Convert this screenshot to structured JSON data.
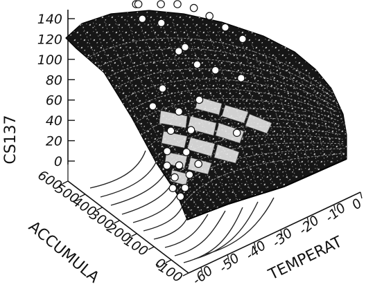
{
  "chart_data": {
    "type": "surface3d",
    "z_axis": {
      "label": "CS137",
      "ticks": [
        "0",
        "20",
        "40",
        "60",
        "80",
        "100",
        "120",
        "140"
      ],
      "range": [
        0,
        140
      ]
    },
    "y_axis": {
      "label": "ACCUMULA",
      "ticks": [
        "-100",
        "0",
        "100",
        "200",
        "300",
        "400",
        "500",
        "600"
      ],
      "range": [
        -100,
        600
      ]
    },
    "x_axis": {
      "label": "TEMPERAT",
      "ticks": [
        "-60",
        "-50",
        "-40",
        "-30",
        "-20",
        "-10",
        "0"
      ],
      "range": [
        -60,
        0
      ]
    },
    "surface_color": "#161616",
    "grid": true,
    "points": [
      {
        "temperat": -42,
        "accumula": 480,
        "cs137": 135
      },
      {
        "temperat": -45,
        "accumula": 420,
        "cs137": 118
      },
      {
        "temperat": -48,
        "accumula": 350,
        "cs137": 112
      },
      {
        "temperat": -44,
        "accumula": 300,
        "cs137": 110
      },
      {
        "temperat": -30,
        "accumula": 520,
        "cs137": 92
      },
      {
        "temperat": -25,
        "accumula": 500,
        "cs137": 88
      },
      {
        "temperat": -40,
        "accumula": 260,
        "cs137": 85
      },
      {
        "temperat": -22,
        "accumula": 450,
        "cs137": 80
      },
      {
        "temperat": -35,
        "accumula": 300,
        "cs137": 78
      },
      {
        "temperat": -50,
        "accumula": 200,
        "cs137": 70
      },
      {
        "temperat": -18,
        "accumula": 420,
        "cs137": 72
      },
      {
        "temperat": -33,
        "accumula": 260,
        "cs137": 65
      },
      {
        "temperat": -55,
        "accumula": 180,
        "cs137": 62
      },
      {
        "temperat": -28,
        "accumula": 230,
        "cs137": 58
      },
      {
        "temperat": -12,
        "accumula": 420,
        "cs137": 55
      },
      {
        "temperat": -47,
        "accumula": 150,
        "cs137": 52
      },
      {
        "temperat": -38,
        "accumula": 170,
        "cs137": 50
      },
      {
        "temperat": -8,
        "accumula": 380,
        "cs137": 45
      },
      {
        "temperat": -52,
        "accumula": 120,
        "cs137": 44
      },
      {
        "temperat": -45,
        "accumula": 110,
        "cs137": 38
      },
      {
        "temperat": -56,
        "accumula": 80,
        "cs137": 35
      },
      {
        "temperat": -15,
        "accumula": 280,
        "cs137": 30
      },
      {
        "temperat": -50,
        "accumula": 60,
        "cs137": 30
      },
      {
        "temperat": -58,
        "accumula": 50,
        "cs137": 28
      },
      {
        "temperat": -54,
        "accumula": 40,
        "cs137": 25
      },
      {
        "temperat": -48,
        "accumula": 20,
        "cs137": 22
      },
      {
        "temperat": -57,
        "accumula": 20,
        "cs137": 20
      },
      {
        "temperat": -52,
        "accumula": 10,
        "cs137": 18
      },
      {
        "temperat": -25,
        "accumula": 150,
        "cs137": 8
      },
      {
        "temperat": -59,
        "accumula": 0,
        "cs137": 15
      },
      {
        "temperat": -55,
        "accumula": -10,
        "cs137": 12
      },
      {
        "temperat": -58,
        "accumula": -30,
        "cs137": 10
      }
    ]
  }
}
